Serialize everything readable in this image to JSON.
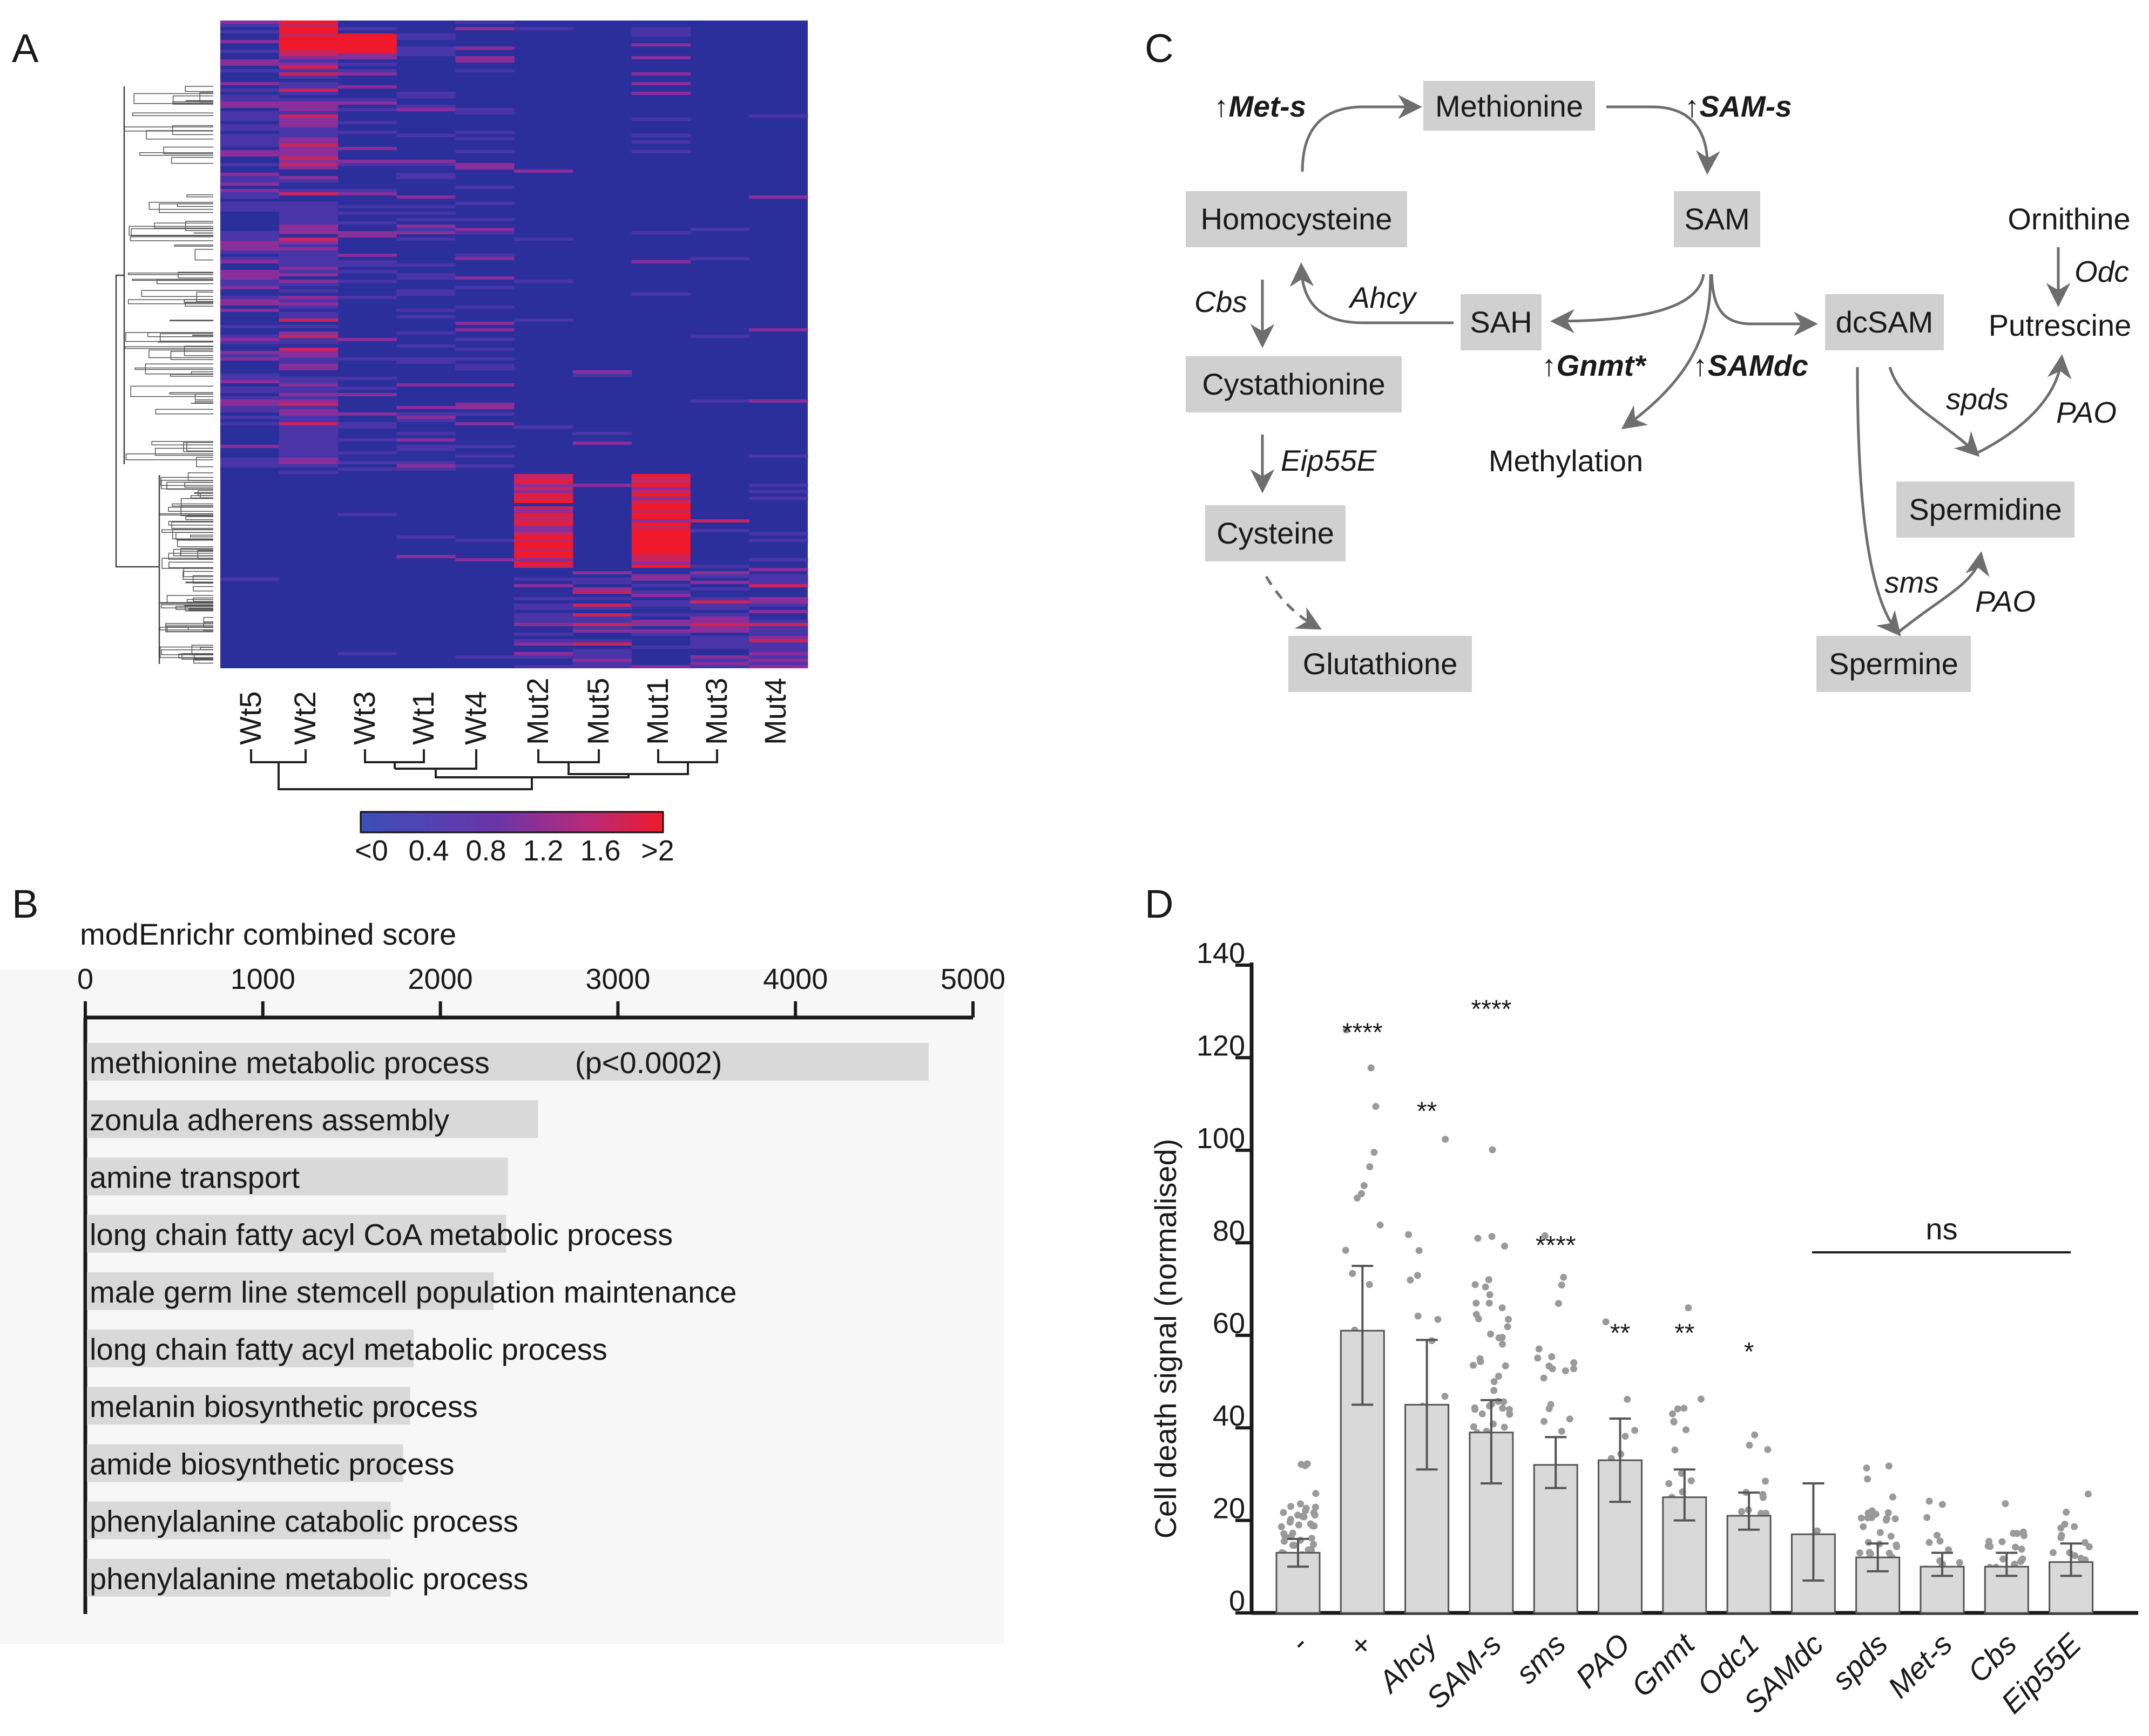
{
  "panels": {
    "a": "A",
    "b": "B",
    "c": "C",
    "d": "D"
  },
  "heatmap": {
    "samples": [
      "Wt5",
      "Wt2",
      "Wt3",
      "Wt1",
      "Wt4",
      "Mut2",
      "Mut5",
      "Mut1",
      "Mut3",
      "Mut4"
    ],
    "colorbar_labels": [
      "<0",
      "0.4",
      "0.8",
      "1.2",
      "1.6",
      ">2"
    ],
    "colors": {
      "low": "#2b2f9c",
      "mid": "#7a2a9a",
      "high": "#f0192b"
    }
  },
  "pathway": {
    "nodes": {
      "methionine": "Methionine",
      "homocysteine": "Homocysteine",
      "sam": "SAM",
      "ornithine": "Ornithine",
      "sah": "SAH",
      "dcsam": "dcSAM",
      "putrescine": "Putrescine",
      "cystathionine": "Cystathionine",
      "methylation": "Methylation",
      "spermidine": "Spermidine",
      "cysteine": "Cysteine",
      "glutathione": "Glutathione",
      "spermine": "Spermine"
    },
    "enzymes": {
      "met_s": "Met-s",
      "sam_s": "SAM-s",
      "cbs": "Cbs",
      "ahcy": "Ahcy",
      "gnmt": "Gnmt*",
      "samdc": "SAMdc",
      "eip55e": "Eip55E",
      "odc": "Odc",
      "spds": "spds",
      "pao_1": "PAO",
      "sms": "sms",
      "pao_2": "PAO"
    },
    "up_arrow": "↑",
    "box_color": "#d0d0d0",
    "arrow_color": "#6e6e6e"
  },
  "enrichment": {
    "chart_data": {
      "type": "bar",
      "orientation": "horizontal",
      "title": "modEnrichr combined score",
      "xlim": [
        0,
        5000
      ],
      "ticks": [
        0,
        1000,
        2000,
        3000,
        4000,
        5000
      ],
      "tick_labels": [
        "0",
        "1000",
        "2000",
        "3000",
        "4000",
        "5000"
      ],
      "categories": [
        "methionine metabolic process",
        "zonula adherens assembly",
        "amine transport",
        "long chain fatty acyl CoA metabolic process",
        "male germ line stemcell population maintenance",
        "long chain fatty acyl metabolic process",
        "melanin biosynthetic process",
        "amide biosynthetic process",
        "phenylalanine catabolic process",
        "phenylalanine metabolic process"
      ],
      "values": [
        4750,
        2550,
        2380,
        2370,
        2300,
        1850,
        1830,
        1790,
        1720,
        1720
      ],
      "annotation": "(p<0.0002)",
      "bar_color": "#d9d9d9"
    }
  },
  "celldeath": {
    "chart_data": {
      "type": "bar",
      "ylabel": "Cell death signal (normalised)",
      "ylim": [
        0,
        140
      ],
      "yticks": [
        0,
        20,
        40,
        60,
        80,
        100,
        120,
        140
      ],
      "ytick_labels": [
        "0",
        "20",
        "40",
        "60",
        "80",
        "100",
        "120",
        "140"
      ],
      "categories": [
        "-",
        "+",
        "Ahcy",
        "SAM-s",
        "sms",
        "PAO",
        "Gnmt",
        "Odc1",
        "SAMdc",
        "spds",
        "Met-s",
        "Cbs",
        "Eip55E"
      ],
      "italic": [
        false,
        false,
        true,
        true,
        true,
        true,
        true,
        true,
        true,
        true,
        true,
        true,
        true
      ],
      "values": [
        13,
        61,
        45,
        39,
        32,
        33,
        25,
        21,
        17,
        12,
        10,
        10,
        11
      ],
      "err_low": [
        10,
        45,
        31,
        28,
        27,
        24,
        20,
        18,
        7,
        9,
        8,
        8,
        8
      ],
      "err_high": [
        16,
        75,
        59,
        46,
        38,
        42,
        31,
        26,
        28,
        15,
        13,
        13,
        15
      ],
      "significance": [
        "",
        "****",
        "**",
        "****",
        "****",
        "**",
        "**",
        "*",
        "",
        "",
        "",
        "",
        ""
      ],
      "ns_label": "ns",
      "ns_span": [
        "SAMdc",
        "Eip55E"
      ],
      "bar_color": "#d9d9d9",
      "point_color": "#9a9a9a"
    }
  }
}
